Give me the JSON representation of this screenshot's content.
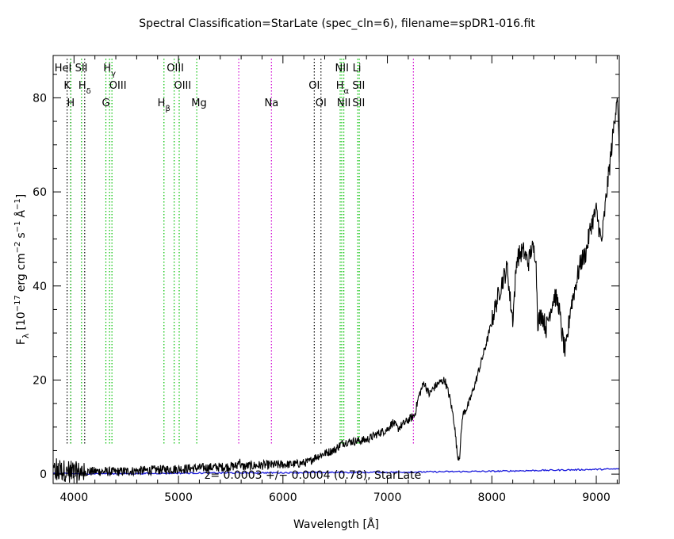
{
  "chart_data": {
    "type": "line",
    "title": "Spectral Classification=StarLate (spec_cln=6), filename=spDR1-016.fit",
    "xlabel": "Wavelength [Å]",
    "ylabel_parts": {
      "f": "F",
      "lambda": "λ",
      "open": "[10",
      "exp17": "−17",
      "erg": "erg cm",
      "exp2": "−2",
      "s": "s",
      "exp1": "−1",
      "ang": "Å",
      "expA": "−1",
      "close": "]"
    },
    "xlim": [
      3800,
      9220
    ],
    "ylim": [
      -2,
      89
    ],
    "xticks": [
      4000,
      5000,
      6000,
      7000,
      8000,
      9000
    ],
    "yticks": [
      0,
      20,
      40,
      60,
      80
    ],
    "redshift_label": "z= 0.0003 +/− 0.0004 (0.78), StarLate",
    "colors": {
      "spectrum": "#000000",
      "model": "#1a1adc",
      "green_line": "#00c000",
      "magenta_line": "#d000d0",
      "black_line": "#000000"
    },
    "spectrum_anchors": [
      [
        3800,
        0.5
      ],
      [
        3900,
        0.8
      ],
      [
        4000,
        0.3
      ],
      [
        4100,
        0.5
      ],
      [
        4200,
        0.6
      ],
      [
        4400,
        0.5
      ],
      [
        4600,
        0.7
      ],
      [
        4800,
        0.9
      ],
      [
        5000,
        1.1
      ],
      [
        5200,
        1.3
      ],
      [
        5400,
        1.5
      ],
      [
        5560,
        1.7
      ],
      [
        5580,
        3.2
      ],
      [
        5600,
        1.6
      ],
      [
        5800,
        1.9
      ],
      [
        6000,
        2.0
      ],
      [
        6150,
        2.2
      ],
      [
        6250,
        2.6
      ],
      [
        6300,
        3.5
      ],
      [
        6400,
        4.4
      ],
      [
        6500,
        5.2
      ],
      [
        6560,
        6.5
      ],
      [
        6600,
        6.8
      ],
      [
        6700,
        7.0
      ],
      [
        6800,
        7.3
      ],
      [
        6900,
        8.5
      ],
      [
        7000,
        9.5
      ],
      [
        7050,
        11.0
      ],
      [
        7100,
        9.7
      ],
      [
        7200,
        11.5
      ],
      [
        7260,
        12.5
      ],
      [
        7300,
        16.5
      ],
      [
        7350,
        19.5
      ],
      [
        7400,
        17.0
      ],
      [
        7450,
        18.5
      ],
      [
        7500,
        19.5
      ],
      [
        7550,
        20.0
      ],
      [
        7600,
        16.0
      ],
      [
        7640,
        11.0
      ],
      [
        7670,
        4.0
      ],
      [
        7690,
        3.5
      ],
      [
        7720,
        12.5
      ],
      [
        7780,
        15.0
      ],
      [
        7850,
        20.0
      ],
      [
        7950,
        28.0
      ],
      [
        8050,
        37.0
      ],
      [
        8100,
        41.0
      ],
      [
        8150,
        44.0
      ],
      [
        8170,
        38.0
      ],
      [
        8200,
        33.0
      ],
      [
        8240,
        46.0
      ],
      [
        8300,
        47.5
      ],
      [
        8350,
        45.0
      ],
      [
        8380,
        48.0
      ],
      [
        8420,
        47.0
      ],
      [
        8440,
        32.5
      ],
      [
        8480,
        34.0
      ],
      [
        8520,
        31.0
      ],
      [
        8560,
        35.0
      ],
      [
        8600,
        38.0
      ],
      [
        8640,
        36.0
      ],
      [
        8670,
        30.0
      ],
      [
        8700,
        26.0
      ],
      [
        8720,
        28.0
      ],
      [
        8750,
        35.0
      ],
      [
        8800,
        40.0
      ],
      [
        8850,
        45.0
      ],
      [
        8900,
        47.0
      ],
      [
        8950,
        53.0
      ],
      [
        9000,
        56.0
      ],
      [
        9050,
        49.0
      ],
      [
        9100,
        60.0
      ],
      [
        9150,
        70.0
      ],
      [
        9200,
        81.0
      ],
      [
        9220,
        68.0
      ]
    ],
    "model_anchors": [
      [
        3800,
        0.1
      ],
      [
        4500,
        0.1
      ],
      [
        5000,
        0.2
      ],
      [
        6000,
        0.3
      ],
      [
        7000,
        0.4
      ],
      [
        7500,
        0.5
      ],
      [
        8000,
        0.6
      ],
      [
        8500,
        0.8
      ],
      [
        9000,
        1.0
      ],
      [
        9220,
        1.1
      ]
    ],
    "lines": [
      {
        "x": 3934,
        "color": "black"
      },
      {
        "x": 3969,
        "color": "black"
      },
      {
        "x": 3968,
        "color": "green"
      },
      {
        "x": 4072,
        "color": "green"
      },
      {
        "x": 4102,
        "color": "black"
      },
      {
        "x": 4305,
        "color": "green"
      },
      {
        "x": 4340,
        "color": "green"
      },
      {
        "x": 4363,
        "color": "green"
      },
      {
        "x": 4861,
        "color": "green"
      },
      {
        "x": 4959,
        "color": "green"
      },
      {
        "x": 5007,
        "color": "green"
      },
      {
        "x": 5175,
        "color": "green"
      },
      {
        "x": 5577,
        "color": "magenta"
      },
      {
        "x": 5890,
        "color": "magenta"
      },
      {
        "x": 6300,
        "color": "black"
      },
      {
        "x": 6364,
        "color": "black"
      },
      {
        "x": 6548,
        "color": "green"
      },
      {
        "x": 6563,
        "color": "green"
      },
      {
        "x": 6583,
        "color": "green"
      },
      {
        "x": 6716,
        "color": "green"
      },
      {
        "x": 6731,
        "color": "green"
      },
      {
        "x": 7249,
        "color": "magenta"
      }
    ],
    "line_labels": [
      {
        "text": "HeI",
        "x": 3895,
        "row": 1
      },
      {
        "text": "SII",
        "x": 4070,
        "row": 1
      },
      {
        "text": "H",
        "sub": "γ",
        "x": 4340,
        "row": 1
      },
      {
        "text": "OIII",
        "x": 4970,
        "row": 1
      },
      {
        "text": "NII",
        "x": 6565,
        "row": 1
      },
      {
        "text": "Li",
        "x": 6708,
        "row": 1
      },
      {
        "text": "K",
        "x": 3934,
        "row": 2
      },
      {
        "text": "H",
        "sub": "δ",
        "x": 4102,
        "row": 2
      },
      {
        "text": "OIII",
        "x": 4420,
        "row": 2
      },
      {
        "text": "OIII",
        "x": 5040,
        "row": 2
      },
      {
        "text": "OI",
        "x": 6300,
        "row": 2
      },
      {
        "text": "H",
        "sub": "α",
        "x": 6570,
        "row": 2
      },
      {
        "text": "SII",
        "x": 6725,
        "row": 2
      },
      {
        "text": "H",
        "x": 3969,
        "row": 3
      },
      {
        "text": "G",
        "x": 4305,
        "row": 3
      },
      {
        "text": "H",
        "sub": "β",
        "x": 4861,
        "row": 3
      },
      {
        "text": "Mg",
        "x": 5197,
        "row": 3
      },
      {
        "text": "Na",
        "x": 5890,
        "row": 3
      },
      {
        "text": "OI",
        "x": 6364,
        "row": 3
      },
      {
        "text": "NII",
        "x": 6583,
        "row": 3
      },
      {
        "text": "SII",
        "x": 6725,
        "row": 3
      }
    ]
  }
}
